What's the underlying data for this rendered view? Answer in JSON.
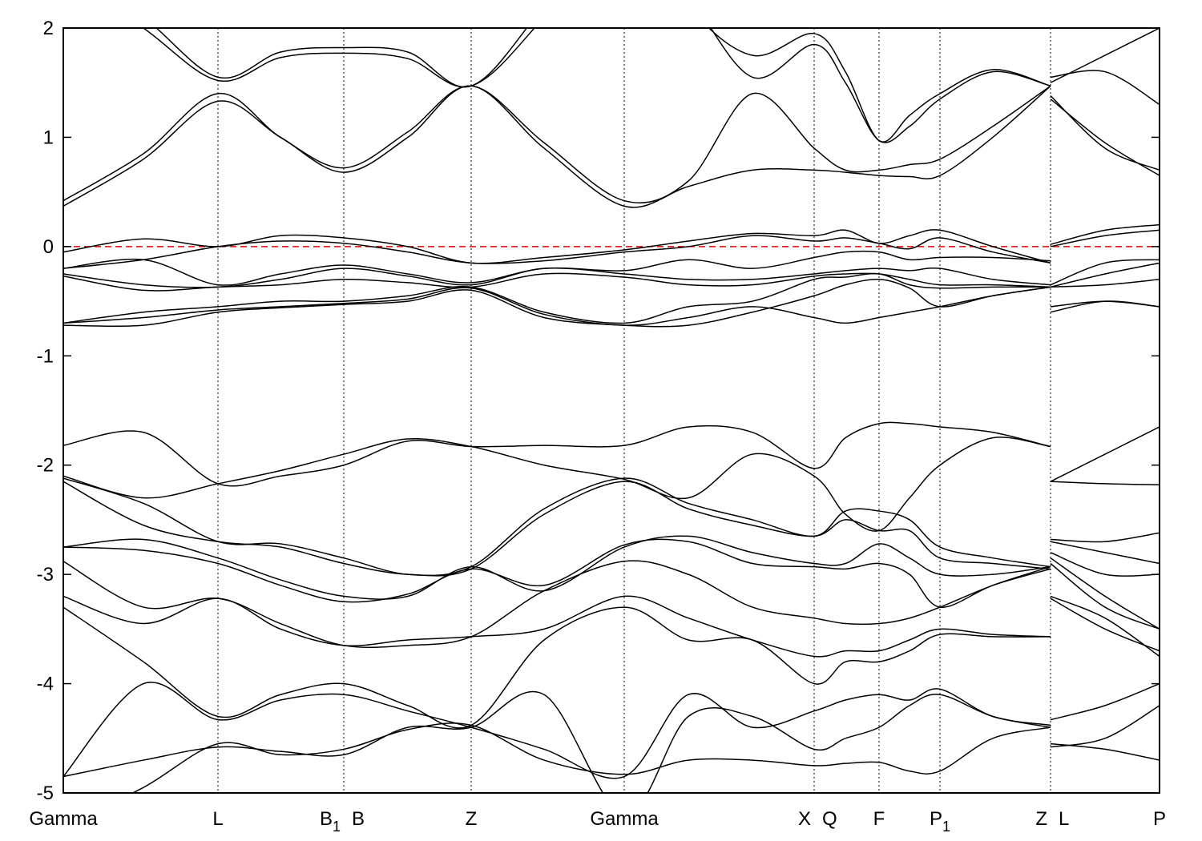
{
  "chart_data": {
    "type": "line",
    "title": "",
    "xlabel": "",
    "ylabel": "",
    "ylim": [
      -5,
      2
    ],
    "yticks": [
      2,
      1,
      0,
      -1,
      -2,
      -3,
      -4,
      -5
    ],
    "grid": "vertical dotted lines at high-symmetry points",
    "fermi_level": {
      "value": 0,
      "color": "#e00000",
      "style": "dashed"
    },
    "band_color": "#000000",
    "xlim": [
      0,
      13.68
    ],
    "kpoints": [
      {
        "x": 0,
        "label": "Gamma",
        "sub": ""
      },
      {
        "x": 1.93,
        "label": "L",
        "sub": ""
      },
      {
        "x": 3.5,
        "label": "B",
        "sub": "1",
        "label2": "B"
      },
      {
        "x": 5.09,
        "label": "Z",
        "sub": ""
      },
      {
        "x": 7.0,
        "label": "Gamma",
        "sub": ""
      },
      {
        "x": 9.37,
        "label": "X",
        "sub": "",
        "label2": "Q"
      },
      {
        "x": 10.18,
        "label": "F",
        "sub": ""
      },
      {
        "x": 10.94,
        "label": "P",
        "sub": "1"
      },
      {
        "x": 12.32,
        "label": "Z",
        "sub": "",
        "label2": "L"
      },
      {
        "x": 13.68,
        "label": "P",
        "sub": ""
      }
    ],
    "segments": [
      {
        "x": [
          0,
          1.0,
          1.93,
          2.71,
          3.5,
          4.3,
          5.09,
          6.0,
          7.0,
          7.8,
          8.6,
          9.37,
          9.76,
          10.18,
          10.56,
          10.94,
          11.6,
          12.32
        ],
        "bands": [
          [
            0.37,
            0.8,
            1.33,
            1.0,
            0.68,
            1.0,
            1.47,
            0.9,
            0.37,
            0.55,
            0.7,
            0.7,
            0.68,
            0.65,
            0.64,
            0.65,
            1.0,
            1.47
          ],
          [
            0.42,
            0.85,
            1.4,
            1.0,
            0.72,
            1.05,
            1.47,
            0.95,
            0.42,
            0.6,
            1.4,
            0.9,
            0.7,
            0.7,
            0.75,
            0.8,
            1.1,
            1.47
          ],
          [
            2.5,
            2.0,
            1.52,
            1.73,
            1.77,
            1.72,
            1.47,
            2.1,
            3.0,
            2.3,
            1.55,
            1.85,
            1.5,
            0.97,
            1.1,
            1.35,
            1.6,
            1.47
          ],
          [
            2.6,
            2.1,
            1.55,
            1.78,
            1.82,
            1.78,
            1.47,
            2.2,
            3.1,
            2.2,
            1.75,
            1.95,
            1.6,
            0.97,
            1.2,
            1.4,
            1.62,
            1.47
          ],
          [
            -0.05,
            0.07,
            0.0,
            0.1,
            0.08,
            0.0,
            -0.15,
            -0.1,
            -0.03,
            0.05,
            0.12,
            0.1,
            0.15,
            0.03,
            0.1,
            0.15,
            0.0,
            -0.15
          ],
          [
            -0.2,
            -0.12,
            0.0,
            0.05,
            0.03,
            -0.05,
            -0.15,
            -0.13,
            -0.05,
            0.0,
            0.1,
            0.05,
            0.08,
            0.03,
            -0.02,
            0.08,
            -0.05,
            -0.15
          ],
          [
            -0.2,
            -0.12,
            -0.35,
            -0.25,
            -0.17,
            -0.25,
            -0.33,
            -0.2,
            -0.22,
            -0.12,
            -0.2,
            -0.1,
            -0.05,
            -0.05,
            -0.12,
            -0.1,
            -0.1,
            -0.13
          ],
          [
            -0.25,
            -0.35,
            -0.37,
            -0.3,
            -0.2,
            -0.27,
            -0.35,
            -0.2,
            -0.25,
            -0.3,
            -0.3,
            -0.25,
            -0.22,
            -0.2,
            -0.22,
            -0.2,
            -0.3,
            -0.35
          ],
          [
            -0.27,
            -0.4,
            -0.37,
            -0.35,
            -0.3,
            -0.33,
            -0.37,
            -0.25,
            -0.28,
            -0.35,
            -0.35,
            -0.27,
            -0.25,
            -0.25,
            -0.3,
            -0.35,
            -0.35,
            -0.37
          ],
          [
            -0.7,
            -0.6,
            -0.55,
            -0.5,
            -0.5,
            -0.45,
            -0.37,
            -0.6,
            -0.7,
            -0.55,
            -0.5,
            -0.3,
            -0.28,
            -0.25,
            -0.35,
            -0.38,
            -0.37,
            -0.37
          ],
          [
            -0.7,
            -0.65,
            -0.58,
            -0.55,
            -0.52,
            -0.48,
            -0.38,
            -0.62,
            -0.72,
            -0.65,
            -0.55,
            -0.65,
            -0.7,
            -0.65,
            -0.6,
            -0.55,
            -0.45,
            -0.37
          ],
          [
            -0.72,
            -0.72,
            -0.6,
            -0.56,
            -0.53,
            -0.5,
            -0.4,
            -0.65,
            -0.72,
            -0.72,
            -0.6,
            -0.45,
            -0.35,
            -0.3,
            -0.38,
            -0.55,
            -0.45,
            -0.37
          ],
          [
            -1.82,
            -1.7,
            -2.17,
            -2.1,
            -2.0,
            -1.78,
            -1.83,
            -1.82,
            -1.82,
            -1.65,
            -1.7,
            -2.03,
            -1.75,
            -1.62,
            -1.62,
            -1.65,
            -1.7,
            -1.83
          ],
          [
            -2.1,
            -2.3,
            -2.17,
            -2.05,
            -1.9,
            -1.76,
            -1.83,
            -2.0,
            -2.13,
            -2.3,
            -1.9,
            -2.1,
            -2.45,
            -2.6,
            -2.3,
            -2.0,
            -1.75,
            -1.83
          ],
          [
            -2.12,
            -2.35,
            -2.7,
            -2.72,
            -2.85,
            -3.0,
            -2.93,
            -2.4,
            -2.12,
            -2.35,
            -2.5,
            -2.65,
            -2.42,
            -2.42,
            -2.5,
            -2.75,
            -2.85,
            -2.93
          ],
          [
            -2.15,
            -2.55,
            -2.7,
            -2.75,
            -2.9,
            -3.0,
            -2.95,
            -2.45,
            -2.15,
            -2.4,
            -2.55,
            -2.65,
            -2.5,
            -2.6,
            -2.6,
            -2.85,
            -2.9,
            -2.95
          ],
          [
            -2.75,
            -2.68,
            -2.85,
            -3.05,
            -3.2,
            -3.2,
            -2.93,
            -3.15,
            -2.75,
            -2.65,
            -2.8,
            -2.9,
            -2.9,
            -2.72,
            -2.85,
            -3.0,
            -3.0,
            -2.93
          ],
          [
            -2.75,
            -2.78,
            -2.9,
            -3.1,
            -3.25,
            -3.18,
            -2.95,
            -3.1,
            -2.73,
            -2.7,
            -2.9,
            -2.93,
            -2.95,
            -2.9,
            -3.0,
            -3.3,
            -3.1,
            -2.95
          ],
          [
            -2.88,
            -3.3,
            -3.22,
            -3.45,
            -3.65,
            -3.65,
            -3.57,
            -3.15,
            -2.88,
            -3.0,
            -3.3,
            -3.4,
            -3.45,
            -3.45,
            -3.4,
            -3.3,
            -3.1,
            -2.93
          ],
          [
            -3.2,
            -3.45,
            -3.22,
            -3.5,
            -3.65,
            -3.6,
            -3.57,
            -3.5,
            -3.2,
            -3.4,
            -3.6,
            -3.75,
            -3.7,
            -3.7,
            -3.6,
            -3.5,
            -3.55,
            -3.57
          ],
          [
            -3.3,
            -3.8,
            -4.3,
            -4.1,
            -4.0,
            -4.2,
            -4.38,
            -3.6,
            -3.3,
            -3.6,
            -3.6,
            -4.0,
            -3.8,
            -3.8,
            -3.7,
            -3.55,
            -3.57,
            -3.57
          ],
          [
            -4.85,
            -4.0,
            -4.33,
            -4.15,
            -4.1,
            -4.25,
            -4.4,
            -4.6,
            -4.85,
            -4.1,
            -4.4,
            -4.25,
            -4.15,
            -4.1,
            -4.15,
            -4.05,
            -4.3,
            -4.38
          ],
          [
            -4.85,
            -4.7,
            -4.58,
            -4.62,
            -4.65,
            -4.4,
            -4.4,
            -4.1,
            -5.2,
            -4.3,
            -4.3,
            -4.6,
            -4.5,
            -4.4,
            -4.2,
            -4.1,
            -4.3,
            -4.4
          ],
          [
            -5.3,
            -4.95,
            -4.55,
            -4.65,
            -4.6,
            -4.42,
            -4.38,
            -4.7,
            -4.83,
            -4.7,
            -4.7,
            -4.75,
            -4.73,
            -4.72,
            -4.8,
            -4.8,
            -4.5,
            -4.4
          ]
        ]
      },
      {
        "x": [
          12.32,
          13.0,
          13.68
        ],
        "bands": [
          [
            1.35,
            0.95,
            0.65
          ],
          [
            1.38,
            0.9,
            0.7
          ],
          [
            1.55,
            1.6,
            1.3
          ],
          [
            1.5,
            1.75,
            2.0
          ],
          [
            0.02,
            0.15,
            0.2
          ],
          [
            0.0,
            0.1,
            0.15
          ],
          [
            -0.35,
            -0.15,
            -0.12
          ],
          [
            -0.37,
            -0.25,
            -0.15
          ],
          [
            -0.37,
            -0.35,
            -0.3
          ],
          [
            -0.55,
            -0.5,
            -0.55
          ],
          [
            -0.6,
            -0.5,
            -0.55
          ],
          [
            -2.15,
            -2.17,
            -2.18
          ],
          [
            -2.15,
            -1.9,
            -1.65
          ],
          [
            -2.68,
            -2.7,
            -2.62
          ],
          [
            -2.7,
            -2.8,
            -2.9
          ],
          [
            -2.8,
            -3.0,
            -3.0
          ],
          [
            -2.85,
            -3.2,
            -3.5
          ],
          [
            -2.9,
            -3.3,
            -3.5
          ],
          [
            -3.2,
            -3.4,
            -3.75
          ],
          [
            -3.22,
            -3.5,
            -3.7
          ],
          [
            -4.33,
            -4.2,
            -4.0
          ],
          [
            -4.58,
            -4.5,
            -4.2
          ],
          [
            -4.55,
            -4.6,
            -4.7
          ]
        ]
      }
    ]
  }
}
